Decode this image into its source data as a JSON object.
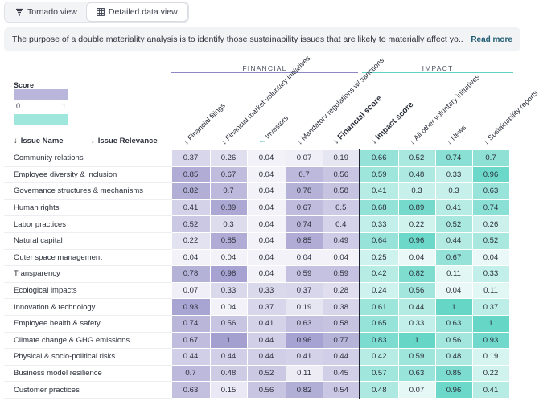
{
  "view_toggle": {
    "tornado_label": "Tornado view",
    "detailed_label": "Detailed data view",
    "active": "detailed"
  },
  "banner": {
    "text": "The purpose of a double materiality analysis is to identify those sustainability issues that are likely to materially affect yo...",
    "read_more": "Read more"
  },
  "groups": {
    "financial": "FINANCIAL",
    "impact": "IMPACT"
  },
  "legend": {
    "title": "Score",
    "min": "0",
    "max": "1"
  },
  "row_headers": {
    "issue_name": "Issue Name",
    "issue_relevance": "Issue Relevance"
  },
  "sort_glyph": "↓",
  "columns": [
    {
      "label": "Financial filings",
      "sort": "↓"
    },
    {
      "label": "Financial market voluntary initiatives",
      "sort": "↓"
    },
    {
      "label": "Investors",
      "sort": "↖"
    },
    {
      "label": "Mandatory regulations w/ sanctions",
      "sort": "↓"
    },
    {
      "label": "Financial score",
      "sort": "↓"
    },
    {
      "label": "Impact score",
      "sort": "↓"
    },
    {
      "label": "All other voluntary initiatives",
      "sort": "↓"
    },
    {
      "label": "News",
      "sort": "↓"
    },
    {
      "label": "Sustainability reports",
      "sort": "↓"
    }
  ],
  "colors": {
    "financial_rgb": [
      140,
      135,
      195
    ],
    "impact_rgb": [
      64,
      204,
      185
    ],
    "financial_line": "#8c87c3",
    "impact_line": "#5fd1c4",
    "divider": "#1f2230",
    "investor_arrow": "#2fb8a8"
  },
  "rows": [
    {
      "name": "Community relations",
      "values": [
        "0.37",
        "0.26",
        "0.04",
        "0.07",
        "0.19",
        "0.66",
        "0.52",
        "0.74",
        "0.7"
      ]
    },
    {
      "name": "Employee diversity & inclusion",
      "values": [
        "0.85",
        "0.67",
        "0.04",
        "0.7",
        "0.56",
        "0.59",
        "0.48",
        "0.33",
        "0.96"
      ]
    },
    {
      "name": "Governance structures & mechanisms",
      "values": [
        "0.82",
        "0.7",
        "0.04",
        "0.78",
        "0.58",
        "0.41",
        "0.3",
        "0.3",
        "0.63"
      ]
    },
    {
      "name": "Human rights",
      "values": [
        "0.41",
        "0.89",
        "0.04",
        "0.67",
        "0.5",
        "0.68",
        "0.89",
        "0.41",
        "0.74"
      ]
    },
    {
      "name": "Labor practices",
      "values": [
        "0.52",
        "0.3",
        "0.04",
        "0.74",
        "0.4",
        "0.33",
        "0.22",
        "0.52",
        "0.26"
      ]
    },
    {
      "name": "Natural capital",
      "values": [
        "0.22",
        "0.85",
        "0.04",
        "0.85",
        "0.49",
        "0.64",
        "0.96",
        "0.44",
        "0.52"
      ]
    },
    {
      "name": "Outer space management",
      "values": [
        "0.04",
        "0.04",
        "0.04",
        "0.04",
        "0.04",
        "0.25",
        "0.04",
        "0.67",
        "0.04"
      ]
    },
    {
      "name": "Transparency",
      "values": [
        "0.78",
        "0.96",
        "0.04",
        "0.59",
        "0.59",
        "0.42",
        "0.82",
        "0.11",
        "0.33"
      ]
    },
    {
      "name": "Ecological impacts",
      "values": [
        "0.07",
        "0.33",
        "0.33",
        "0.37",
        "0.28",
        "0.24",
        "0.56",
        "0.04",
        "0.11"
      ]
    },
    {
      "name": "Innovation & technology",
      "values": [
        "0.93",
        "0.04",
        "0.37",
        "0.19",
        "0.38",
        "0.61",
        "0.44",
        "1",
        "0.37"
      ]
    },
    {
      "name": "Employee health & safety",
      "values": [
        "0.74",
        "0.56",
        "0.41",
        "0.63",
        "0.58",
        "0.65",
        "0.33",
        "0.63",
        "1"
      ]
    },
    {
      "name": "Climate change & GHG emissions",
      "values": [
        "0.67",
        "1",
        "0.44",
        "0.96",
        "0.77",
        "0.83",
        "1",
        "0.56",
        "0.93"
      ]
    },
    {
      "name": "Physical & socio-political risks",
      "values": [
        "0.44",
        "0.44",
        "0.44",
        "0.41",
        "0.44",
        "0.42",
        "0.59",
        "0.48",
        "0.19"
      ]
    },
    {
      "name": "Business model resilience",
      "values": [
        "0.7",
        "0.48",
        "0.52",
        "0.11",
        "0.45",
        "0.57",
        "0.63",
        "0.85",
        "0.22"
      ]
    },
    {
      "name": "Customer practices",
      "values": [
        "0.63",
        "0.15",
        "0.56",
        "0.82",
        "0.54",
        "0.48",
        "0.07",
        "0.96",
        "0.41"
      ]
    }
  ]
}
